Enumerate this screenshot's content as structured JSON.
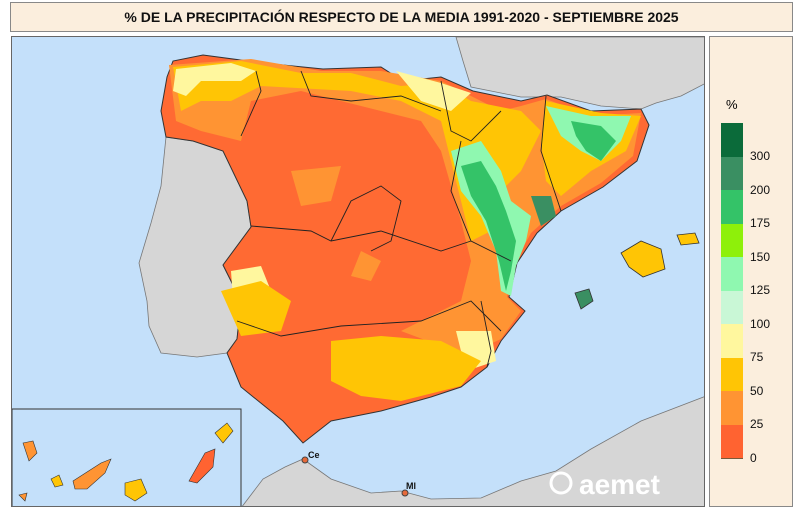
{
  "title": "% DE LA PRECIPITACIÓN RESPECTO DE LA MEDIA 1991-2020 - SEPTIEMBRE 2025",
  "legend": {
    "unit": "%",
    "classes": [
      {
        "label": "300",
        "color": "#0b6b3a"
      },
      {
        "label": "200",
        "color": "#3a8f62"
      },
      {
        "label": "175",
        "color": "#34c368"
      },
      {
        "label": "150",
        "color": "#8ef00a"
      },
      {
        "label": "125",
        "color": "#8ff8b0"
      },
      {
        "label": "100",
        "color": "#c9f7d6"
      },
      {
        "label": "75",
        "color": "#fff79e"
      },
      {
        "label": "50",
        "color": "#ffc505"
      },
      {
        "label": "25",
        "color": "#ff9433"
      },
      {
        "label": "0",
        "color": "#ff6331"
      }
    ]
  },
  "places": {
    "ceuta": "Ce",
    "melilla": "Ml"
  },
  "logo": "aemet",
  "colors": {
    "sea": "#c4e0fa",
    "land": "#d6d6d6",
    "panel": "#fbeedd"
  }
}
